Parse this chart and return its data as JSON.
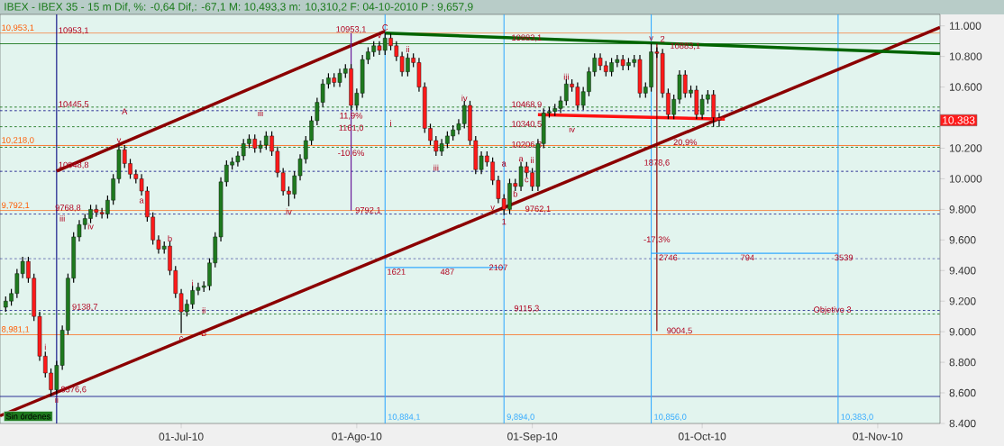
{
  "chart_data": {
    "type": "candlestick",
    "title": "IBEX - IBEX 35 -  15 m Dif, %: -0,64 Dif,: -67,1 M: 10,493,3 m: 10,310,2 F: 04-10-2010 P : 9,657,9",
    "x": [
      "2010-05-31",
      "2010-06-01",
      "2010-06-02",
      "2010-06-03",
      "2010-06-04",
      "2010-06-05",
      "2010-06-06",
      "2010-06-07",
      "2010-06-08",
      "2010-06-09",
      "2010-06-10",
      "2010-06-11",
      "2010-06-12",
      "2010-06-13",
      "2010-06-14",
      "2010-06-15",
      "2010-06-16",
      "2010-06-17",
      "2010-06-18",
      "2010-06-19",
      "2010-06-20",
      "2010-06-21",
      "2010-06-22",
      "2010-06-23",
      "2010-06-24",
      "2010-06-25",
      "2010-06-26",
      "2010-06-27",
      "2010-06-28",
      "2010-06-29",
      "2010-06-30",
      "2010-07-01",
      "2010-07-02",
      "2010-07-03",
      "2010-07-04",
      "2010-07-05",
      "2010-07-06",
      "2010-07-07",
      "2010-07-08",
      "2010-07-09",
      "2010-07-10",
      "2010-07-11",
      "2010-07-12",
      "2010-07-13",
      "2010-07-14",
      "2010-07-15",
      "2010-07-16",
      "2010-07-17",
      "2010-07-18",
      "2010-07-19",
      "2010-07-20",
      "2010-07-21",
      "2010-07-22",
      "2010-07-23",
      "2010-07-24",
      "2010-07-25",
      "2010-07-26",
      "2010-07-27",
      "2010-07-28",
      "2010-07-29",
      "2010-07-30",
      "2010-07-31",
      "2010-08-01",
      "2010-08-02",
      "2010-08-03",
      "2010-08-04",
      "2010-08-05",
      "2010-08-06",
      "2010-08-07",
      "2010-08-08",
      "2010-08-09",
      "2010-08-10",
      "2010-08-11",
      "2010-08-12",
      "2010-08-13",
      "2010-08-14",
      "2010-08-15",
      "2010-08-16",
      "2010-08-17",
      "2010-08-18",
      "2010-08-19",
      "2010-08-20",
      "2010-08-21",
      "2010-08-22",
      "2010-08-23",
      "2010-08-24",
      "2010-08-25",
      "2010-08-26",
      "2010-08-27",
      "2010-08-28",
      "2010-08-29",
      "2010-08-30",
      "2010-08-31",
      "2010-09-01",
      "2010-09-02",
      "2010-09-03",
      "2010-09-04",
      "2010-09-05",
      "2010-09-06",
      "2010-09-07",
      "2010-09-08",
      "2010-09-09",
      "2010-09-10",
      "2010-09-11",
      "2010-09-12",
      "2010-09-13",
      "2010-09-14",
      "2010-09-15",
      "2010-09-16",
      "2010-09-17",
      "2010-09-18",
      "2010-09-19",
      "2010-09-20",
      "2010-09-21",
      "2010-09-22",
      "2010-09-23",
      "2010-09-24",
      "2010-09-25",
      "2010-09-26",
      "2010-09-27",
      "2010-09-28",
      "2010-09-29",
      "2010-09-30",
      "2010-10-01",
      "2010-10-02",
      "2010-10-03",
      "2010-10-04"
    ],
    "ohlc": [
      [
        9160,
        9230,
        9130,
        9200
      ],
      [
        9200,
        9280,
        9170,
        9250
      ],
      [
        9250,
        9410,
        9220,
        9380
      ],
      [
        9380,
        9490,
        9350,
        9460
      ],
      [
        9460,
        9490,
        9320,
        9350
      ],
      [
        9350,
        9380,
        9070,
        9100
      ],
      [
        9100,
        9130,
        8810,
        8840
      ],
      [
        8840,
        8870,
        8700,
        8730
      ],
      [
        8730,
        8760,
        8576.6,
        8620
      ],
      [
        8620,
        8810,
        8590,
        8780
      ],
      [
        8780,
        9040,
        8750,
        9010
      ],
      [
        9010,
        9380,
        8980,
        9350
      ],
      [
        9350,
        9650,
        9320,
        9620
      ],
      [
        9620,
        9730,
        9590,
        9700
      ],
      [
        9700,
        9770,
        9670,
        9740
      ],
      [
        9740,
        9830,
        9710,
        9800
      ],
      [
        9800,
        9830,
        9750,
        9780
      ],
      [
        9780,
        9810,
        9740,
        9770
      ],
      [
        9770,
        9890,
        9740,
        9860
      ],
      [
        9860,
        10030,
        9830,
        10000
      ],
      [
        10000,
        10218,
        9970,
        10190
      ],
      [
        10190,
        10220,
        10070,
        10100
      ],
      [
        10100,
        10130,
        10000,
        10030
      ],
      [
        10030,
        10060,
        9970,
        10000
      ],
      [
        10000,
        10030,
        9890,
        9920
      ],
      [
        9920,
        9950,
        9720,
        9750
      ],
      [
        9750,
        9780,
        9570,
        9600
      ],
      [
        9600,
        9630,
        9510,
        9540
      ],
      [
        9540,
        9590,
        9510,
        9560
      ],
      [
        9560,
        9590,
        9370,
        9400
      ],
      [
        9400,
        9430,
        9220,
        9250
      ],
      [
        9250,
        9280,
        8990,
        9130
      ],
      [
        9130,
        9210,
        9100,
        9180
      ],
      [
        9180,
        9300,
        9150,
        9270
      ],
      [
        9270,
        9320,
        9240,
        9290
      ],
      [
        9290,
        9330,
        9260,
        9300
      ],
      [
        9300,
        9480,
        9270,
        9450
      ],
      [
        9450,
        9650,
        9420,
        9620
      ],
      [
        9620,
        10010,
        9590,
        9980
      ],
      [
        9980,
        10120,
        9950,
        10090
      ],
      [
        10090,
        10140,
        10060,
        10110
      ],
      [
        10110,
        10180,
        10080,
        10150
      ],
      [
        10150,
        10260,
        10120,
        10230
      ],
      [
        10230,
        10290,
        10200,
        10260
      ],
      [
        10260,
        10290,
        10170,
        10200
      ],
      [
        10200,
        10250,
        10170,
        10220
      ],
      [
        10220,
        10310,
        10190,
        10280
      ],
      [
        10280,
        10310,
        10150,
        10180
      ],
      [
        10180,
        10210,
        10010,
        10040
      ],
      [
        10040,
        10070,
        9890,
        9920
      ],
      [
        9920,
        9950,
        9820,
        9900
      ],
      [
        9900,
        10050,
        9870,
        10020
      ],
      [
        10020,
        10160,
        9990,
        10130
      ],
      [
        10130,
        10280,
        10100,
        10250
      ],
      [
        10250,
        10410,
        10220,
        10380
      ],
      [
        10380,
        10530,
        10350,
        10500
      ],
      [
        10500,
        10650,
        10470,
        10620
      ],
      [
        10620,
        10690,
        10590,
        10660
      ],
      [
        10660,
        10690,
        10600,
        10630
      ],
      [
        10630,
        10720,
        10600,
        10690
      ],
      [
        10690,
        10750,
        10660,
        10720
      ],
      [
        10720,
        10750,
        10450,
        10480
      ],
      [
        10480,
        10590,
        10450,
        10560
      ],
      [
        10560,
        10810,
        10530,
        10780
      ],
      [
        10780,
        10860,
        10750,
        10830
      ],
      [
        10830,
        10900,
        10800,
        10870
      ],
      [
        10870,
        10900,
        10810,
        10840
      ],
      [
        10840,
        10953.1,
        10810,
        10920
      ],
      [
        10920,
        10950,
        10840,
        10870
      ],
      [
        10870,
        10900,
        10770,
        10800
      ],
      [
        10800,
        10830,
        10670,
        10700
      ],
      [
        10700,
        10820,
        10670,
        10790
      ],
      [
        10790,
        10820,
        10730,
        10760
      ],
      [
        10760,
        10790,
        10570,
        10600
      ],
      [
        10600,
        10630,
        10300,
        10330
      ],
      [
        10330,
        10360,
        10220,
        10250
      ],
      [
        10250,
        10280,
        10150,
        10180
      ],
      [
        10180,
        10260,
        10150,
        10230
      ],
      [
        10230,
        10310,
        10200,
        10280
      ],
      [
        10280,
        10350,
        10250,
        10320
      ],
      [
        10320,
        10390,
        10290,
        10360
      ],
      [
        10360,
        10510,
        10330,
        10480
      ],
      [
        10480,
        10510,
        10220,
        10250
      ],
      [
        10250,
        10280,
        10030,
        10060
      ],
      [
        10060,
        10180,
        10030,
        10150
      ],
      [
        10150,
        10180,
        10080,
        10110
      ],
      [
        10110,
        10140,
        9960,
        9990
      ],
      [
        9990,
        10020,
        9840,
        9870
      ],
      [
        9870,
        9900,
        9762.1,
        9800
      ],
      [
        9800,
        10000,
        9770,
        9970
      ],
      [
        9970,
        10000,
        9920,
        9950
      ],
      [
        9950,
        10110,
        9920,
        10080
      ],
      [
        10080,
        10110,
        10010,
        10040
      ],
      [
        10040,
        10070,
        9920,
        9950
      ],
      [
        9950,
        10260,
        9920,
        10230
      ],
      [
        10230,
        10460,
        10200,
        10430
      ],
      [
        10430,
        10470,
        10400,
        10440
      ],
      [
        10440,
        10490,
        10410,
        10460
      ],
      [
        10460,
        10540,
        10430,
        10510
      ],
      [
        10510,
        10650,
        10480,
        10620
      ],
      [
        10620,
        10650,
        10570,
        10600
      ],
      [
        10600,
        10630,
        10450,
        10480
      ],
      [
        10480,
        10600,
        10450,
        10570
      ],
      [
        10570,
        10730,
        10540,
        10700
      ],
      [
        10700,
        10820,
        10670,
        10790
      ],
      [
        10790,
        10820,
        10710,
        10740
      ],
      [
        10740,
        10770,
        10670,
        10700
      ],
      [
        10700,
        10790,
        10670,
        10760
      ],
      [
        10760,
        10810,
        10730,
        10780
      ],
      [
        10780,
        10810,
        10710,
        10740
      ],
      [
        10740,
        10790,
        10710,
        10760
      ],
      [
        10760,
        10810,
        10730,
        10780
      ],
      [
        10780,
        10810,
        10530,
        10560
      ],
      [
        10560,
        10630,
        10530,
        10600
      ],
      [
        10600,
        10883.1,
        10570,
        10830
      ],
      [
        10830,
        10860,
        10790,
        10820
      ],
      [
        10820,
        10850,
        10530,
        10560
      ],
      [
        10560,
        10590,
        10390,
        10420
      ],
      [
        10420,
        10550,
        10390,
        10520
      ],
      [
        10520,
        10710,
        10490,
        10680
      ],
      [
        10680,
        10710,
        10530,
        10560
      ],
      [
        10560,
        10610,
        10530,
        10580
      ],
      [
        10580,
        10610,
        10390,
        10420
      ],
      [
        10420,
        10550,
        10390,
        10520
      ],
      [
        10520,
        10580,
        10490,
        10550
      ],
      [
        10550,
        10580,
        10340,
        10400
      ],
      [
        10400,
        10430,
        10340,
        10383
      ]
    ],
    "series": [
      {
        "type": "line",
        "x": [
          "2010-06-09",
          "2010-08-06"
        ],
        "values": [
          10050,
          10965
        ],
        "color": "#8b0000"
      },
      {
        "type": "line",
        "x": [
          "2010-05-30",
          "2010-11-12"
        ],
        "values": [
          8450,
          10990
        ],
        "color": "#8b0000"
      },
      {
        "type": "line",
        "x": [
          "2010-08-06",
          "2010-11-12"
        ],
        "values": [
          10953,
          10819
        ],
        "color": "#006400"
      },
      {
        "type": "line",
        "x": [
          "2010-09-02",
          "2010-10-05"
        ],
        "values": [
          10420,
          10390
        ],
        "color": "#ff1010"
      },
      {
        "type": "line",
        "x": [
          "2010-07-31",
          "2010-07-31"
        ],
        "values": [
          10953.1,
          9792.1
        ],
        "color": "#6a1b9a"
      },
      {
        "type": "line",
        "x": [
          "2010-09-23",
          "2010-09-23"
        ],
        "values": [
          10883.1,
          9004.5
        ],
        "color": "#8b0000"
      },
      {
        "type": "line",
        "x": [
          "2010-08-06",
          "2010-08-27"
        ],
        "values": [
          9420,
          9420
        ],
        "color": "#33aaff"
      },
      {
        "type": "line",
        "x": [
          "2010-09-22",
          "2010-10-25"
        ],
        "values": [
          9513,
          9513
        ],
        "color": "#33aaff"
      }
    ],
    "xlim": [
      "2010-05-30",
      "2010-11-12"
    ],
    "ylim": [
      8400,
      11075
    ],
    "xticks": [
      {
        "value": "2010-07-01",
        "label": "01-Jul-10"
      },
      {
        "value": "2010-08-01",
        "label": "01-Ago-10"
      },
      {
        "value": "2010-09-01",
        "label": "01-Sep-10"
      },
      {
        "value": "2010-10-01",
        "label": "01-Oct-10"
      },
      {
        "value": "2010-11-01",
        "label": "01-Nov-10"
      }
    ],
    "yticks": [
      {
        "value": 8400,
        "label": "8.400"
      },
      {
        "value": 8600,
        "label": "8.600"
      },
      {
        "value": 8800,
        "label": "8.800"
      },
      {
        "value": 9000,
        "label": "9.000"
      },
      {
        "value": 9200,
        "label": "9.200"
      },
      {
        "value": 9400,
        "label": "9.400"
      },
      {
        "value": 9600,
        "label": "9.600"
      },
      {
        "value": 9800,
        "label": "9.800"
      },
      {
        "value": 10000,
        "label": "10.000"
      },
      {
        "value": 10200,
        "label": "10.200"
      },
      {
        "value": 10600,
        "label": "10.600"
      },
      {
        "value": 10800,
        "label": "10.800"
      },
      {
        "value": 11000,
        "label": "11.000"
      }
    ],
    "ref_lines": [
      {
        "axis": "y",
        "value": 10953.1,
        "label": "10,953,1",
        "color": "#ff5a00",
        "line_style": "solid"
      },
      {
        "axis": "y",
        "value": 10218.0,
        "label": "10,218,0",
        "color": "#ff5a00",
        "line_style": "solid"
      },
      {
        "axis": "y",
        "value": 9792.1,
        "label": "9,792,1",
        "color": "#ff5a00",
        "line_style": "solid"
      },
      {
        "axis": "y",
        "value": 8981.1,
        "label": "8,981,1",
        "color": "#ff5a00",
        "line_style": "solid"
      },
      {
        "axis": "y",
        "value": 10445.5,
        "color": "#000080",
        "line_style": "dashed"
      },
      {
        "axis": "y",
        "value": 10048.8,
        "color": "#000080",
        "line_style": "dashed"
      },
      {
        "axis": "y",
        "value": 9768.8,
        "color": "#000080",
        "line_style": "dashed"
      },
      {
        "axis": "y",
        "value": 9478,
        "color": "#000080",
        "line_style": "dashed"
      },
      {
        "axis": "y",
        "value": 9138.7,
        "color": "#000080",
        "line_style": "dashed"
      },
      {
        "axis": "y",
        "value": 8576.6,
        "color": "#000080",
        "line_style": "solid"
      },
      {
        "axis": "y",
        "value": 10883.1,
        "color": "#006400",
        "line_style": "solid"
      },
      {
        "axis": "y",
        "value": 10468.9,
        "color": "#006400",
        "line_style": "dashed"
      },
      {
        "axis": "y",
        "value": 10340.5,
        "color": "#006400",
        "line_style": "dashed"
      },
      {
        "axis": "y",
        "value": 10206.3,
        "color": "#006400",
        "line_style": "dashed"
      },
      {
        "axis": "y",
        "value": 9115.3,
        "color": "#006400",
        "line_style": "dashed"
      },
      {
        "axis": "x",
        "value": "2010-06-09",
        "color": "#000080",
        "line_style": "solid"
      },
      {
        "axis": "x",
        "value": "2010-08-06",
        "label": "10,884,1",
        "color": "#33aaff",
        "line_style": "solid"
      },
      {
        "axis": "x",
        "value": "2010-08-27",
        "label": "9,894,0",
        "color": "#33aaff",
        "line_style": "solid"
      },
      {
        "axis": "x",
        "value": "2010-09-22",
        "label": "10,856,0",
        "color": "#33aaff",
        "line_style": "solid"
      },
      {
        "axis": "x",
        "value": "2010-10-25",
        "label": "10,383,0",
        "color": "#33aaff",
        "line_style": "solid"
      }
    ],
    "annotations": [
      {
        "text": "v",
        "x": "2010-06-20",
        "y": 10250
      },
      {
        "text": "A",
        "x": "2010-06-21",
        "y": 10440
      },
      {
        "text": "iii",
        "x": "2010-06-10",
        "y": 9741
      },
      {
        "text": "iv",
        "x": "2010-06-15",
        "y": 9690
      },
      {
        "text": "ii",
        "x": "2010-06-09",
        "y": 8555
      },
      {
        "text": "i",
        "x": "2010-06-07",
        "y": 8900
      },
      {
        "text": "b",
        "x": "2010-06-29",
        "y": 9610
      },
      {
        "text": "a",
        "x": "2010-06-24",
        "y": 9855
      },
      {
        "text": "i",
        "x": "2010-07-03",
        "y": 9318
      },
      {
        "text": "ii",
        "x": "2010-07-05",
        "y": 9140
      },
      {
        "text": "c",
        "x": "2010-07-01",
        "y": 8955
      },
      {
        "text": "B",
        "x": "2010-07-05",
        "y": 8990
      },
      {
        "text": "iii",
        "x": "2010-07-15",
        "y": 10429
      },
      {
        "text": "iv",
        "x": "2010-07-20",
        "y": 9785
      },
      {
        "text": "v",
        "x": "2010-08-05",
        "y": 10935
      },
      {
        "text": "C",
        "x": "2010-08-06",
        "y": 10990
      },
      {
        "text": "ii",
        "x": "2010-08-10",
        "y": 10848
      },
      {
        "text": "i",
        "x": "2010-08-07",
        "y": 10364
      },
      {
        "text": "iv",
        "x": "2010-08-20",
        "y": 10528
      },
      {
        "text": "iii",
        "x": "2010-08-15",
        "y": 10073
      },
      {
        "text": "v",
        "x": "2010-08-25",
        "y": 9810
      },
      {
        "text": "1",
        "x": "2010-08-27",
        "y": 9720
      },
      {
        "text": "a",
        "x": "2010-08-27",
        "y": 10096
      },
      {
        "text": "a",
        "x": "2010-08-30",
        "y": 10128
      },
      {
        "text": "b",
        "x": "2010-08-29",
        "y": 9902
      },
      {
        "text": "c",
        "x": "2010-08-31",
        "y": 9992
      },
      {
        "text": "ii",
        "x": "2010-09-01",
        "y": 10122
      },
      {
        "text": "iii",
        "x": "2010-09-07",
        "y": 10668
      },
      {
        "text": "iv",
        "x": "2010-09-08",
        "y": 10324
      },
      {
        "text": "v",
        "x": "2010-09-22",
        "y": 10918
      },
      {
        "text": "2",
        "x": "2010-09-24",
        "y": 10915
      },
      {
        "text": "10953,1",
        "x": "2010-06-12",
        "y": 10968
      },
      {
        "text": "10445,5",
        "x": "2010-06-12",
        "y": 10485
      },
      {
        "text": "10048,8",
        "x": "2010-06-12",
        "y": 10088
      },
      {
        "text": "9768,8",
        "x": "2010-06-11",
        "y": 9808
      },
      {
        "text": "9138,7",
        "x": "2010-06-14",
        "y": 9160
      },
      {
        "text": "8576,6",
        "x": "2010-06-12",
        "y": 8620
      },
      {
        "text": "10953,1",
        "x": "2010-07-31",
        "y": 10975
      },
      {
        "text": "11,9%",
        "x": "2010-07-31",
        "y": 10410
      },
      {
        "text": "1161,0",
        "x": "2010-07-31",
        "y": 10330
      },
      {
        "text": "-10,6%",
        "x": "2010-07-31",
        "y": 10166
      },
      {
        "text": "9792,1",
        "x": "2010-08-03",
        "y": 9792.1
      },
      {
        "text": "10883,1",
        "x": "2010-08-31",
        "y": 10920
      },
      {
        "text": "10468,9",
        "x": "2010-08-31",
        "y": 10484
      },
      {
        "text": "10340,5",
        "x": "2010-08-31",
        "y": 10356
      },
      {
        "text": "10206,3",
        "x": "2010-08-31",
        "y": 10222
      },
      {
        "text": "9762,1",
        "x": "2010-09-02",
        "y": 9800
      },
      {
        "text": "9115,3",
        "x": "2010-08-31",
        "y": 9150
      },
      {
        "text": "10883,1",
        "x": "2010-09-28",
        "y": 10866
      },
      {
        "text": "20,9%",
        "x": "2010-09-28",
        "y": 10236
      },
      {
        "text": "1878,6",
        "x": "2010-09-23",
        "y": 10103
      },
      {
        "text": "-17,3%",
        "x": "2010-09-23",
        "y": 9600
      },
      {
        "text": "9004,5",
        "x": "2010-09-27",
        "y": 9004.5
      },
      {
        "text": "1621",
        "x": "2010-08-08",
        "y": 9392
      },
      {
        "text": "487",
        "x": "2010-08-17",
        "y": 9392
      },
      {
        "text": "2107",
        "x": "2010-08-26",
        "y": 9420
      },
      {
        "text": "2746",
        "x": "2010-09-25",
        "y": 9485
      },
      {
        "text": "794",
        "x": "2010-10-09",
        "y": 9485
      },
      {
        "text": "3539",
        "x": "2010-10-26",
        "y": 9485
      },
      {
        "text": "Objetivo 3",
        "x": "2010-10-24",
        "y": 9140
      },
      "Sin órdenes",
      {
        "text": "10.383",
        "y": 10383
      }
    ]
  }
}
